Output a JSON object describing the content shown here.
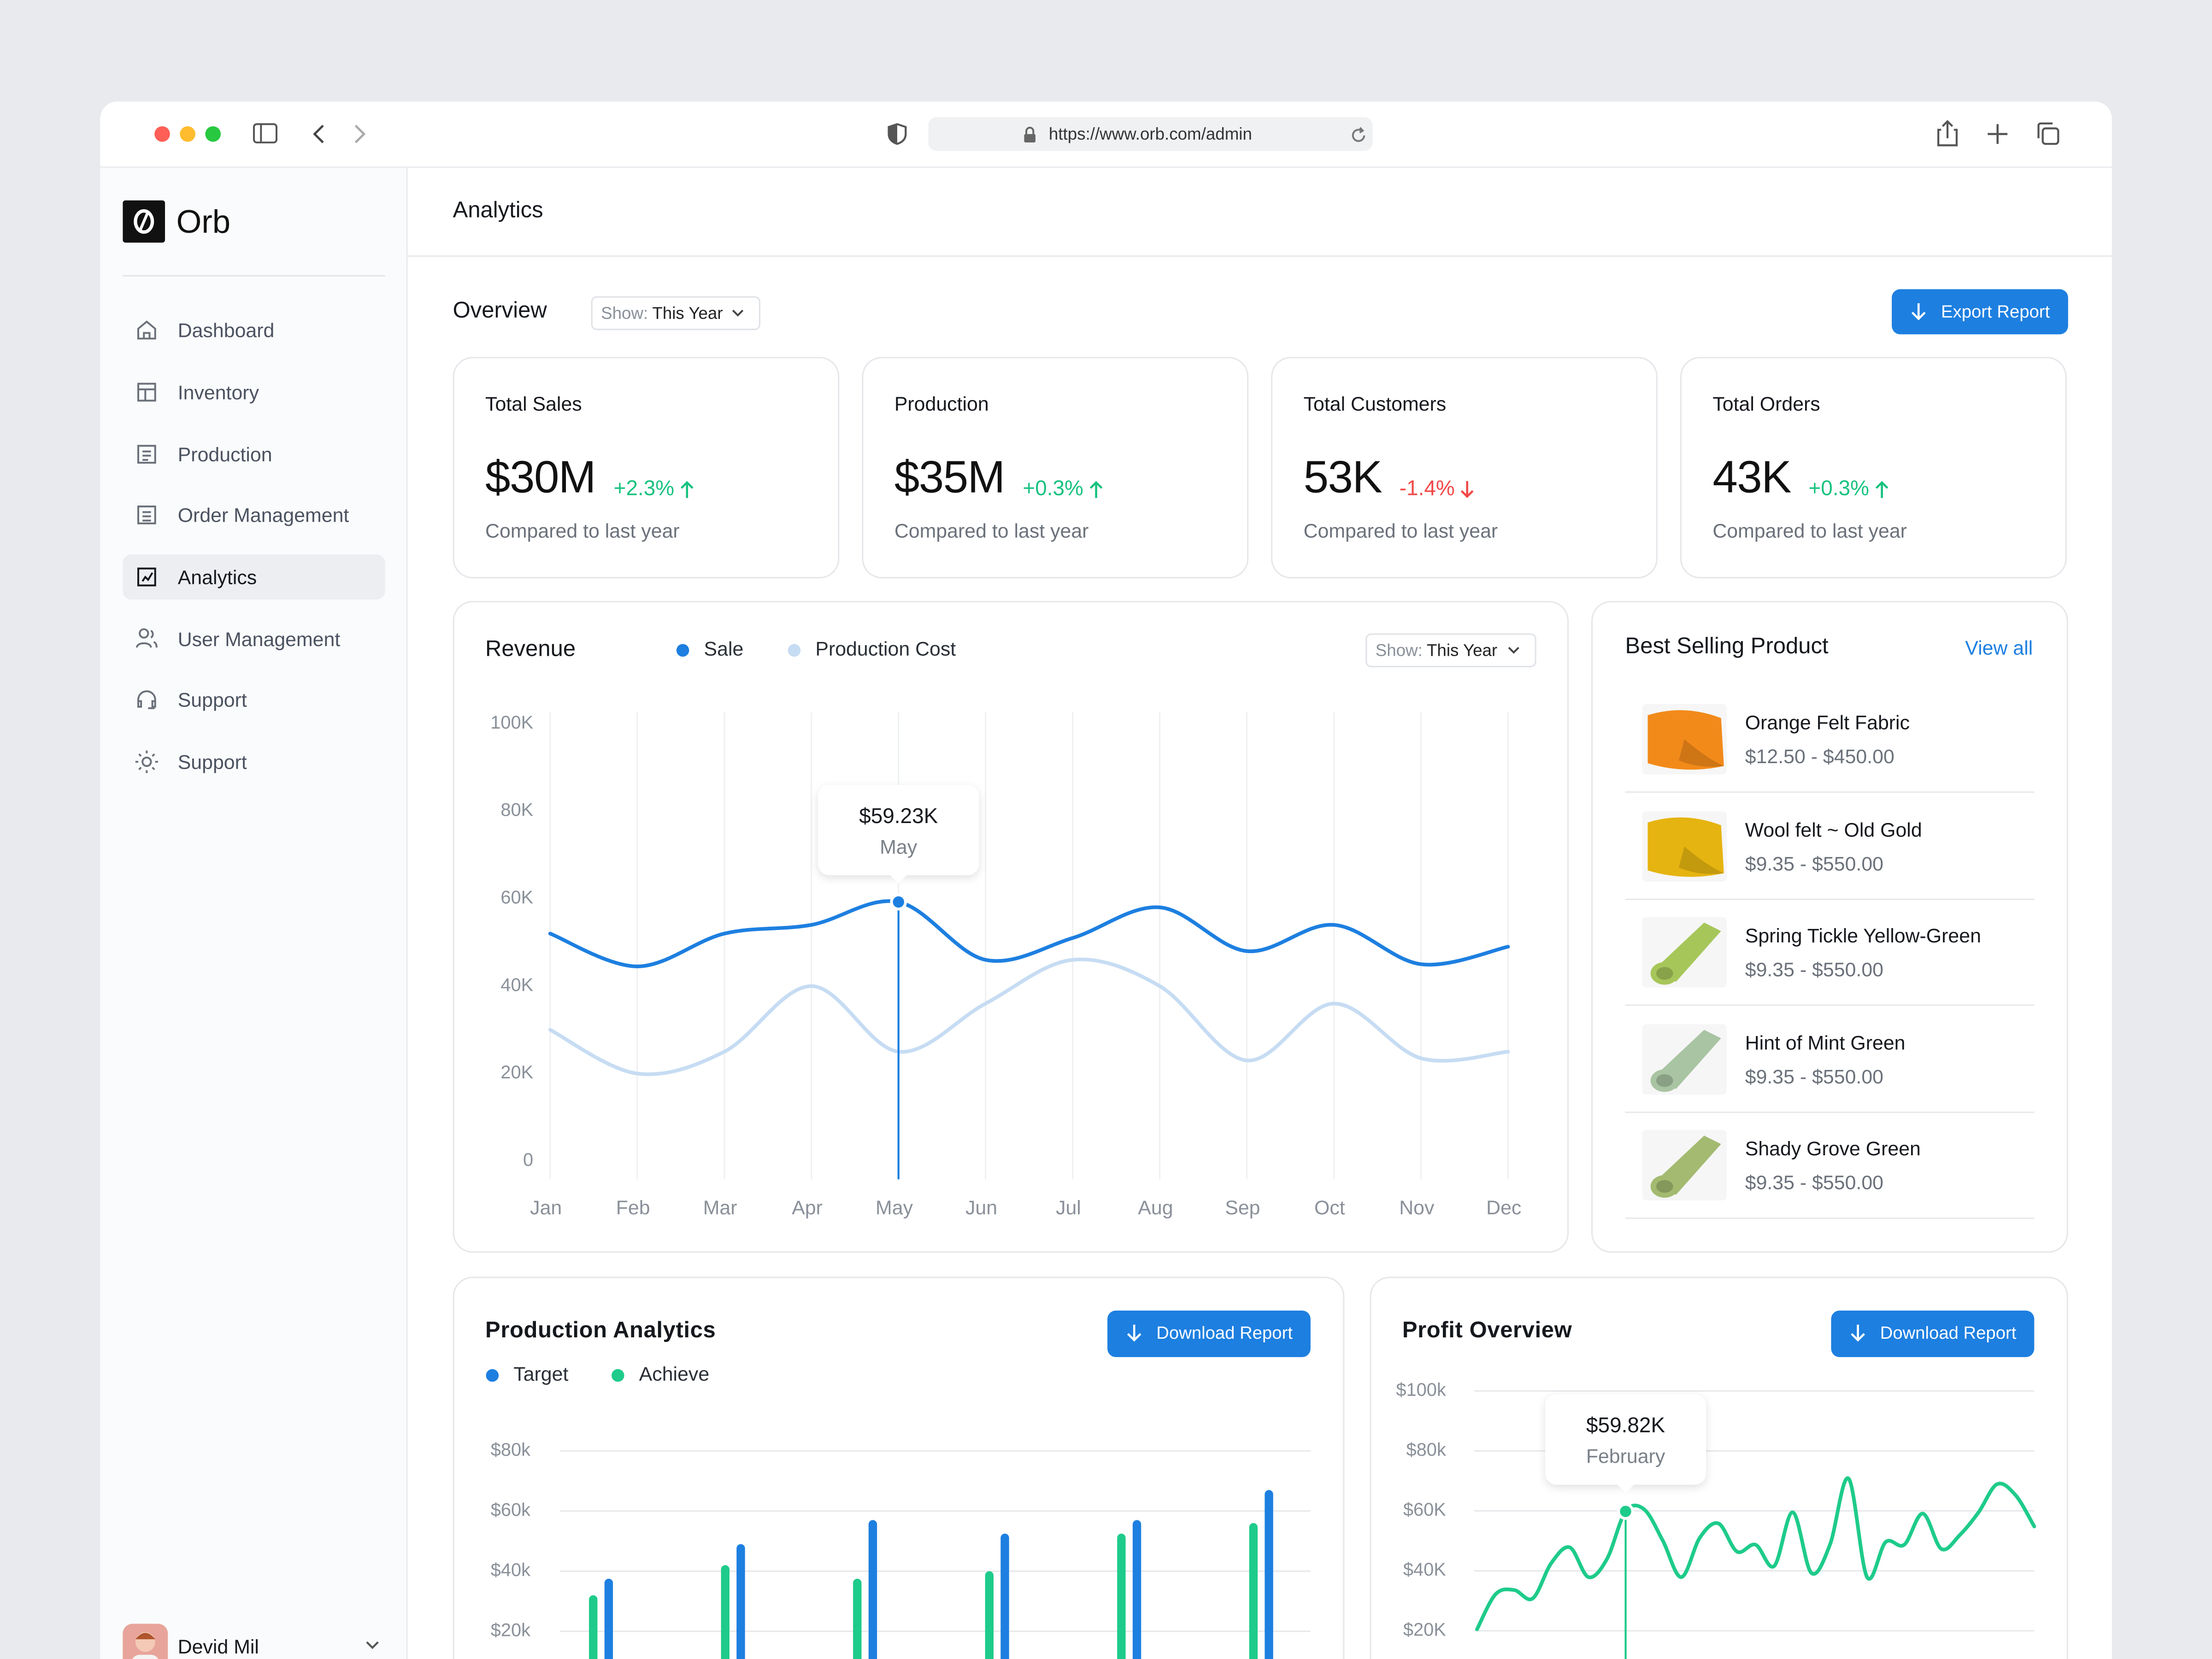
{
  "browser": {
    "url": "https://www.orb.com/admin"
  },
  "sidebar": {
    "brand": "Orb",
    "nav": [
      "Dashboard",
      "Inventory",
      "Production",
      "Order Management",
      "Analytics",
      "User Management",
      "Support",
      "Support"
    ],
    "active": 4,
    "user": "Devid Mil"
  },
  "header": {
    "title": "Analytics"
  },
  "overview": {
    "title": "Overview",
    "filter": {
      "label": "Show:",
      "value": "This Year"
    },
    "action": "Export Report"
  },
  "stats": [
    {
      "label": "Total Sales",
      "value": "$30M",
      "change": "+2.3%",
      "trend": "up",
      "note": "Compared to last year"
    },
    {
      "label": "Production",
      "value": "$35M",
      "change": "+0.3%",
      "trend": "up",
      "note": "Compared to last year"
    },
    {
      "label": "Total Customers",
      "value": "53K",
      "change": "-1.4%",
      "trend": "down",
      "note": "Compared to last year"
    },
    {
      "label": "Total Orders",
      "value": "43K",
      "change": "+0.3%",
      "trend": "up",
      "note": "Compared to last year"
    }
  ],
  "best_selling": {
    "title": "Best Selling Product",
    "link": "View all",
    "products": [
      {
        "name": "Orange Felt Fabric",
        "price": "$12.50 - $450.00",
        "color": "#f28a1a"
      },
      {
        "name": "Wool felt ~ Old Gold",
        "price": "$9.35 - $550.00",
        "color": "#e6b410"
      },
      {
        "name": "Spring Tickle Yellow-Green",
        "price": "$9.35 - $550.00",
        "color": "#a6c65a"
      },
      {
        "name": "Hint of Mint Green",
        "price": "$9.35 - $550.00",
        "color": "#a9c4a2"
      },
      {
        "name": "Shady Grove Green",
        "price": "$9.35 - $550.00",
        "color": "#a3ba70"
      }
    ]
  },
  "chart_data": [
    {
      "type": "line",
      "title": "Revenue",
      "filter": {
        "label": "Show:",
        "value": "This Year"
      },
      "categories": [
        "Jan",
        "Feb",
        "Mar",
        "Apr",
        "May",
        "Jun",
        "Jul",
        "Aug",
        "Sep",
        "Oct",
        "Nov",
        "Dec"
      ],
      "series": [
        {
          "name": "Sale",
          "color": "#1d7fe0",
          "values": [
            52000,
            44500,
            52000,
            54000,
            59230,
            46000,
            51000,
            58000,
            48000,
            54000,
            45000,
            49000
          ]
        },
        {
          "name": "Production Cost",
          "color": "#c6dcf3",
          "values": [
            30000,
            20000,
            25000,
            40000,
            25000,
            36000,
            46000,
            40000,
            23000,
            36000,
            23500,
            25000
          ]
        }
      ],
      "ylim": [
        0,
        100000
      ],
      "yticks": [
        0,
        {
          "value": 20000,
          "label": "20K"
        },
        {
          "value": 40000,
          "label": "40K"
        },
        {
          "value": 60000,
          "label": "60K"
        },
        {
          "value": 80000,
          "label": "80K"
        },
        {
          "value": 100000,
          "label": "100K"
        }
      ],
      "grid": "x",
      "tooltip": {
        "series": 0,
        "index": 4,
        "label": "$59.23K"
      }
    },
    {
      "type": "bar",
      "title": "Production Analytics",
      "action": "Download Report",
      "categories": [
        null,
        null,
        null,
        null,
        null,
        null
      ],
      "series": [
        {
          "name": "Target",
          "color": "#1d7fe0",
          "values": [
            37500,
            49000,
            57000,
            52500,
            57000,
            67000
          ]
        },
        {
          "name": "Achieve",
          "color": "#1ecb8a",
          "values": [
            32000,
            42000,
            37500,
            40000,
            52500,
            56000
          ]
        }
      ],
      "ylim": [
        0,
        80000
      ],
      "yticks": [
        {
          "value": 20000,
          "label": "$20k"
        },
        {
          "value": 40000,
          "label": "$40k"
        },
        {
          "value": 60000,
          "label": "$60k"
        },
        {
          "value": 80000,
          "label": "$80k"
        }
      ],
      "grid": true
    },
    {
      "type": "line",
      "title": "Profit Overview",
      "action": "Download Report",
      "categories": [
        null,
        null,
        null,
        null,
        null,
        null,
        null,
        null,
        "February",
        null,
        null,
        null,
        null,
        null,
        null,
        null,
        null,
        null,
        null,
        null,
        null,
        null,
        null,
        null,
        null,
        null,
        null,
        null,
        null,
        null,
        null
      ],
      "values": [
        20500,
        32200,
        33600,
        30800,
        42600,
        47800,
        37900,
        44000,
        59820,
        60500,
        50100,
        37900,
        51100,
        55800,
        46400,
        48700,
        41600,
        59500,
        39300,
        48700,
        70800,
        37900,
        49600,
        48700,
        59100,
        47300,
        52000,
        59500,
        68900,
        65200,
        54800
      ],
      "color": "#1ecb8a",
      "ylim": [
        0,
        100000
      ],
      "yticks": [
        {
          "value": 20000,
          "label": "$20K"
        },
        {
          "value": 40000,
          "label": "$40K"
        },
        {
          "value": 60000,
          "label": "$60K"
        },
        {
          "value": 80000,
          "label": "$80k"
        },
        {
          "value": 100000,
          "label": "$100k"
        }
      ],
      "grid": true,
      "tooltip": {
        "index": 8,
        "label": "$59.82K"
      }
    }
  ]
}
